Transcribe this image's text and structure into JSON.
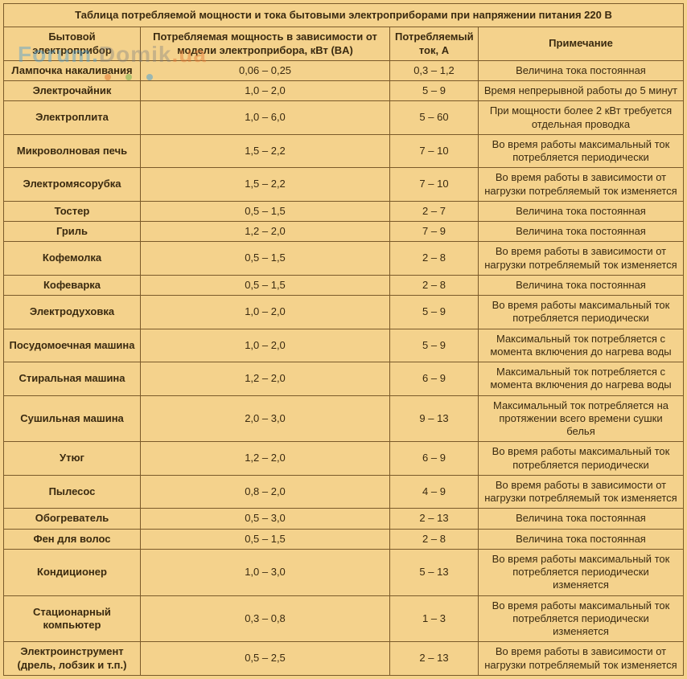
{
  "colors": {
    "page_bg": "#f4d28c",
    "border": "#7a5a2a",
    "text": "#3a2a10"
  },
  "watermark": {
    "part1": "Forum.",
    "part2": "Domik",
    "part3": ".ua"
  },
  "table": {
    "title": "Таблица потребляемой мощности и тока бытовыми электроприборами при напряжении питания 220 В",
    "headers": {
      "device": "Бытовой электроприбор",
      "power": "Потребляемая мощность в зависимости от модели электроприбора, кВт (BA)",
      "current": "Потребляемый ток, А",
      "note": "Примечание"
    },
    "rows": [
      {
        "device": "Лампочка накаливания",
        "power": "0,06 – 0,25",
        "current": "0,3 – 1,2",
        "note": "Величина тока постоянная"
      },
      {
        "device": "Электрочайник",
        "power": "1,0 – 2,0",
        "current": "5 – 9",
        "note": "Время непрерывной работы до 5 минут"
      },
      {
        "device": "Электроплита",
        "power": "1,0 – 6,0",
        "current": "5 – 60",
        "note": "При мощности более 2 кВт требуется отдельная проводка"
      },
      {
        "device": "Микроволновая печь",
        "power": "1,5 – 2,2",
        "current": "7 – 10",
        "note": "Во время работы максимальный ток потребляется периодически"
      },
      {
        "device": "Электромясорубка",
        "power": "1,5 – 2,2",
        "current": "7 – 10",
        "note": "Во время работы в зависимости от нагрузки потребляемый ток изменяется"
      },
      {
        "device": "Тостер",
        "power": "0,5 – 1,5",
        "current": "2 – 7",
        "note": "Величина тока постоянная"
      },
      {
        "device": "Гриль",
        "power": "1,2 – 2,0",
        "current": "7 – 9",
        "note": "Величина тока постоянная"
      },
      {
        "device": "Кофемолка",
        "power": "0,5 – 1,5",
        "current": "2 – 8",
        "note": "Во время работы в зависимости от нагрузки потребляемый ток изменяется"
      },
      {
        "device": "Кофеварка",
        "power": "0,5 – 1,5",
        "current": "2 – 8",
        "note": "Величина тока постоянная"
      },
      {
        "device": "Электродуховка",
        "power": "1,0 – 2,0",
        "current": "5 – 9",
        "note": "Во время работы максимальный ток потребляется периодически"
      },
      {
        "device": "Посудомоечная машина",
        "power": "1,0 – 2,0",
        "current": "5 – 9",
        "note": "Максимальный ток потребляется с момента включения до нагрева воды"
      },
      {
        "device": "Стиральная машина",
        "power": "1,2 – 2,0",
        "current": "6 – 9",
        "note": "Максимальный ток потребляется с момента включения до нагрева воды"
      },
      {
        "device": "Сушильная машина",
        "power": "2,0 – 3,0",
        "current": "9 – 13",
        "note": "Максимальный ток потребляется на протяжении всего времени сушки белья"
      },
      {
        "device": "Утюг",
        "power": "1,2 – 2,0",
        "current": "6 – 9",
        "note": "Во время работы максимальный ток потребляется периодически"
      },
      {
        "device": "Пылесос",
        "power": "0,8 – 2,0",
        "current": "4 – 9",
        "note": "Во время работы в зависимости от нагрузки потребляемый ток изменяется"
      },
      {
        "device": "Обогреватель",
        "power": "0,5 – 3,0",
        "current": "2 – 13",
        "note": "Величина тока постоянная"
      },
      {
        "device": "Фен для волос",
        "power": "0,5 – 1,5",
        "current": "2 – 8",
        "note": "Величина тока постоянная"
      },
      {
        "device": "Кондиционер",
        "power": "1,0 – 3,0",
        "current": "5 – 13",
        "note": "Во время работы максимальный ток потребляется периодически изменяется"
      },
      {
        "device": "Стационарный компьютер",
        "power": "0,3 – 0,8",
        "current": "1 – 3",
        "note": "Во время работы максимальный ток потребляется периодически изменяется"
      },
      {
        "device": "Электроинструмент (дрель, лобзик и т.п.)",
        "power": "0,5 – 2,5",
        "current": "2 – 13",
        "note": "Во время работы в зависимости от нагрузки потребляемый ток изменяется"
      }
    ]
  }
}
